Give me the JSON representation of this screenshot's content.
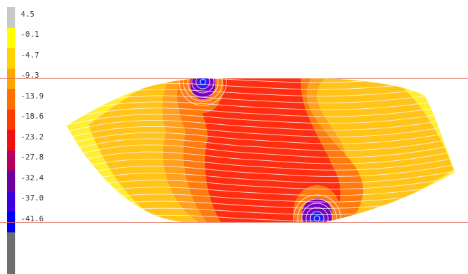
{
  "legend": {
    "labels": [
      "4.5",
      "-0.1",
      "-4.7",
      "-9.3",
      "-13.9",
      "-18.6",
      "-23.2",
      "-27.8",
      "-32.4",
      "-37.0",
      "-41.6"
    ],
    "colors": [
      "#c8c8c8",
      "#ffff00",
      "#ffd200",
      "#ffa500",
      "#ff6e00",
      "#ff3c00",
      "#f01010",
      "#b4005a",
      "#6e00a0",
      "#3c00dc",
      "#0000ff",
      "#6e6e6e"
    ]
  },
  "plot": {
    "boundary_color": "#e07060",
    "contour_line_color": "#ffffff",
    "contour_colors": {
      "outer": "#ffee33",
      "band1": "#ffc31a",
      "band2": "#ffa01e",
      "band3": "#ff7a10",
      "core": "#ff2e10",
      "vortex_mid": "#7a00c0",
      "vortex_core": "#2020ff"
    }
  }
}
